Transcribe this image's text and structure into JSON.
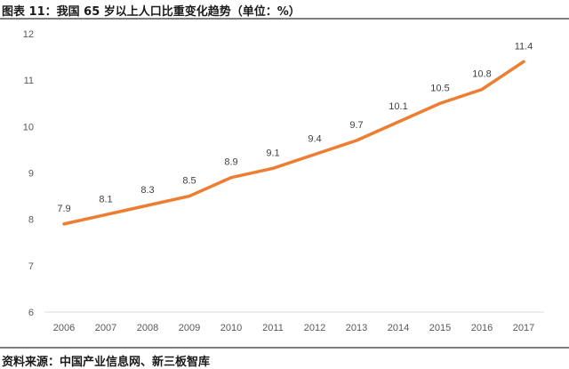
{
  "header": {
    "title": "图表 11：我国 65 岁以上人口比重变化趋势（单位：%）"
  },
  "footer": {
    "source": "资料来源：中国产业信息网、新三板智库"
  },
  "colors": {
    "line": "#ED7D31",
    "axis": "#d9d9d9"
  },
  "chart_data": {
    "type": "line",
    "title": "",
    "xlabel": "",
    "ylabel": "",
    "ylim": [
      6,
      12
    ],
    "yticks": [
      6,
      7,
      8,
      9,
      10,
      11,
      12
    ],
    "grid": false,
    "categories": [
      "2006",
      "2007",
      "2008",
      "2009",
      "2010",
      "2011",
      "2012",
      "2013",
      "2014",
      "2015",
      "2016",
      "2017"
    ],
    "series": [
      {
        "values": [
          7.9,
          8.1,
          8.3,
          8.5,
          8.9,
          9.1,
          9.4,
          9.7,
          10.1,
          10.5,
          10.8,
          11.4
        ]
      }
    ],
    "data_labels": [
      "7.9",
      "8.1",
      "8.3",
      "8.5",
      "8.9",
      "9.1",
      "9.4",
      "9.7",
      "10.1",
      "10.5",
      "10.8",
      "11.4"
    ]
  }
}
